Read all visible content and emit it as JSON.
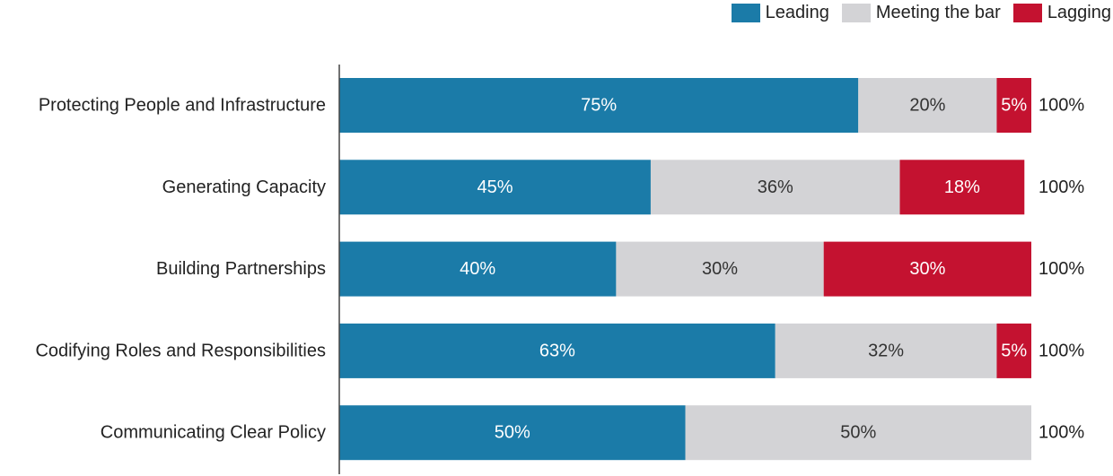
{
  "chart_data": {
    "type": "bar",
    "orientation": "horizontal",
    "stacked": true,
    "categories": [
      "Protecting People and Infrastructure",
      "Generating Capacity",
      "Building Partnerships",
      "Codifying Roles and Responsibilities",
      "Communicating Clear Policy"
    ],
    "series": [
      {
        "name": "Leading",
        "color": "#1b7ba8",
        "values": [
          75,
          45,
          40,
          63,
          50
        ],
        "labels": [
          "75%",
          "45%",
          "40%",
          "63%",
          "50%"
        ]
      },
      {
        "name": "Meeting the bar",
        "color": "#d3d3d6",
        "values": [
          20,
          36,
          30,
          32,
          50
        ],
        "labels": [
          "20%",
          "36%",
          "30%",
          "32%",
          "50%"
        ]
      },
      {
        "name": "Lagging",
        "color": "#c41230",
        "values": [
          5,
          18,
          30,
          5,
          0
        ],
        "labels": [
          "5%",
          "18%",
          "30%",
          "5%",
          ""
        ]
      }
    ],
    "totals": [
      "100%",
      "100%",
      "100%",
      "100%",
      "100%"
    ],
    "xlim": [
      0,
      100
    ],
    "legend_position": "top-right",
    "grid": false
  }
}
